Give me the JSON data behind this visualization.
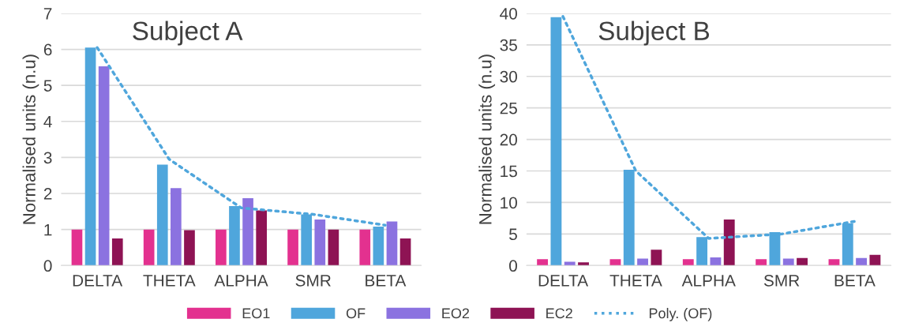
{
  "chart_data": [
    {
      "type": "bar",
      "title": "Subject A",
      "ylabel": "Normalised units (n.u)",
      "categories": [
        "DELTA",
        "THETA",
        "ALPHA",
        "SMR",
        "BETA"
      ],
      "ylim": [
        0,
        7
      ],
      "yticks": [
        0,
        1,
        2,
        3,
        4,
        5,
        6,
        7
      ],
      "grid": "y",
      "legend": "bottom",
      "series": [
        {
          "name": "EO1",
          "color": "#e3318f",
          "values": [
            1.0,
            1.0,
            1.0,
            1.0,
            1.0
          ]
        },
        {
          "name": "OF",
          "color": "#4fa6dc",
          "values": [
            6.05,
            2.8,
            1.65,
            1.42,
            1.08
          ]
        },
        {
          "name": "EO2",
          "color": "#8b72e0",
          "values": [
            5.53,
            2.15,
            1.87,
            1.28,
            1.22
          ]
        },
        {
          "name": "EC2",
          "color": "#8e1354",
          "values": [
            0.75,
            0.98,
            1.53,
            1.0,
            0.75
          ]
        },
        {
          "name": "Poly. (OF)",
          "type": "line",
          "line_style": "dotted",
          "color": "#4fa6dc",
          "values": [
            6.05,
            2.95,
            1.6,
            1.42,
            1.12
          ]
        }
      ]
    },
    {
      "type": "bar",
      "title": "Subject B",
      "ylabel": "Normalised units (n.u)",
      "categories": [
        "DELTA",
        "THETA",
        "ALPHA",
        "SMR",
        "BETA"
      ],
      "ylim": [
        0,
        40
      ],
      "yticks": [
        0,
        5,
        10,
        15,
        20,
        25,
        30,
        35,
        40
      ],
      "grid": "y",
      "series": [
        {
          "name": "EO1",
          "color": "#e3318f",
          "values": [
            1.0,
            1.0,
            1.0,
            1.0,
            1.0
          ]
        },
        {
          "name": "OF",
          "color": "#4fa6dc",
          "values": [
            39.4,
            15.2,
            4.5,
            5.3,
            6.7
          ]
        },
        {
          "name": "EO2",
          "color": "#8b72e0",
          "values": [
            0.6,
            1.1,
            1.3,
            1.1,
            1.2
          ]
        },
        {
          "name": "EC2",
          "color": "#8e1354",
          "values": [
            0.5,
            2.5,
            7.3,
            1.2,
            1.7
          ]
        },
        {
          "name": "Poly. (OF)",
          "type": "line",
          "line_style": "dotted",
          "color": "#4fa6dc",
          "values": [
            39.5,
            15.0,
            4.3,
            5.0,
            7.0
          ]
        }
      ]
    }
  ]
}
